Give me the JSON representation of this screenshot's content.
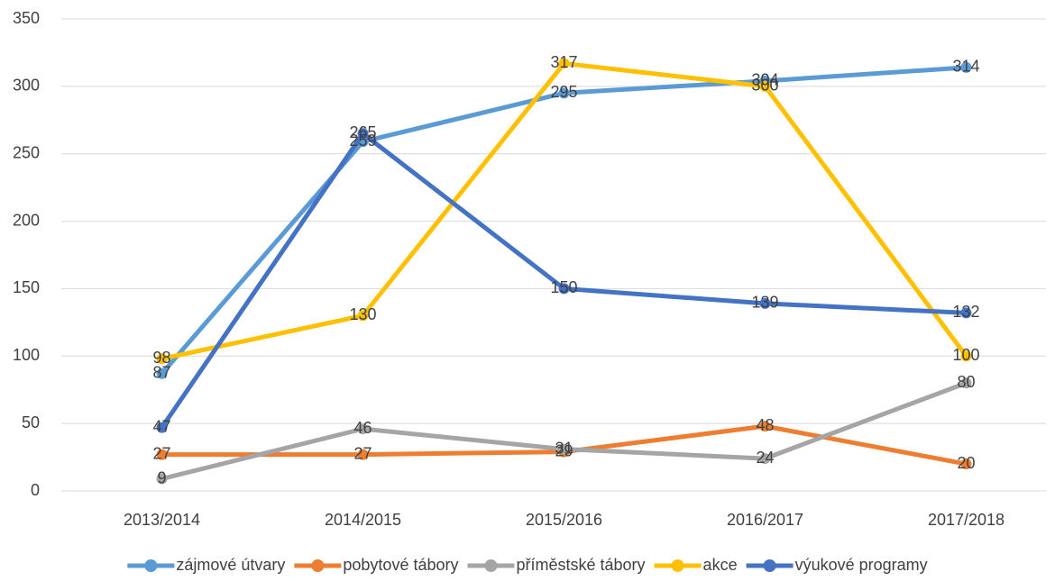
{
  "chart_data": {
    "type": "line",
    "categories": [
      "2013/2014",
      "2014/2015",
      "2015/2016",
      "2016/2017",
      "2017/2018"
    ],
    "series": [
      {
        "name": "zájmové útvary",
        "color": "#5b9bd5",
        "values": [
          87,
          259,
          295,
          304,
          314
        ]
      },
      {
        "name": "pobytové tábory",
        "color": "#ed7d31",
        "values": [
          27,
          27,
          29,
          48,
          20
        ]
      },
      {
        "name": "příměstské tábory",
        "color": "#a5a5a5",
        "values": [
          9,
          46,
          31,
          24,
          80
        ]
      },
      {
        "name": "akce",
        "color": "#ffc000",
        "values": [
          98,
          130,
          317,
          300,
          100
        ]
      },
      {
        "name": "výukové programy",
        "color": "#4472c4",
        "values": [
          47,
          265,
          150,
          139,
          132
        ]
      }
    ],
    "ylim": [
      0,
      350
    ],
    "yticks": [
      0,
      50,
      100,
      150,
      200,
      250,
      300,
      350
    ],
    "grid": true,
    "legend": "bottom",
    "data_labels": true
  }
}
